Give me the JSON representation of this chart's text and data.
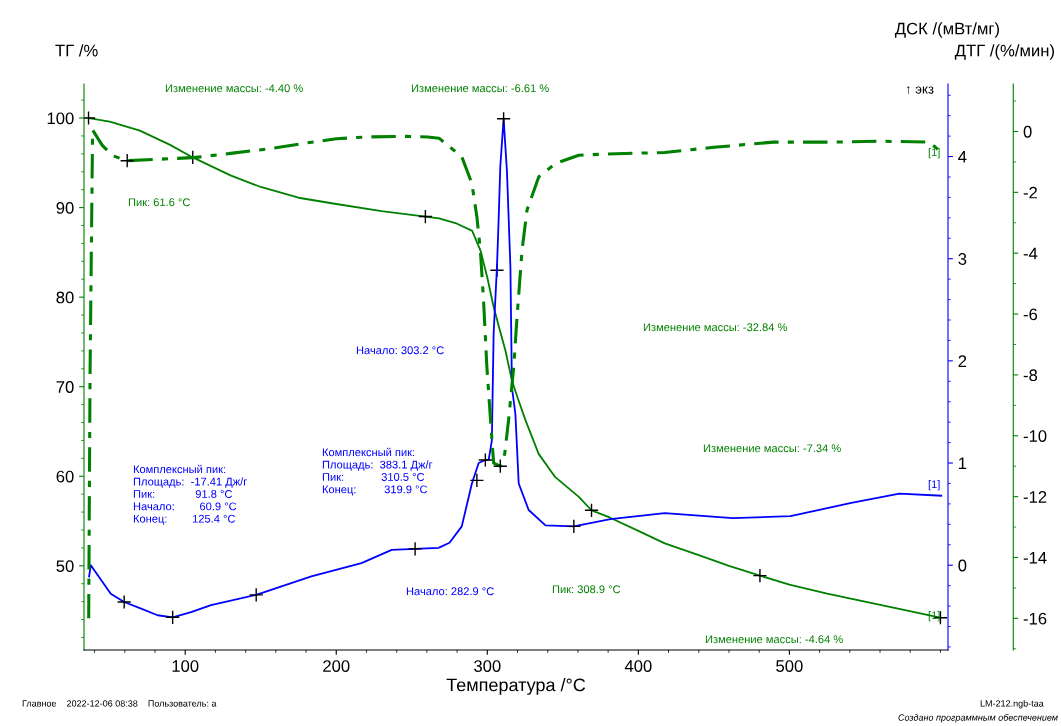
{
  "chart_data": {
    "type": "line",
    "xlabel": "Температура /°C",
    "ylabel": "ТГ /%",
    "y2label": "ДСК /(мВт/мг)",
    "y3label": "ДТГ /(%/мин)",
    "xlim": [
      33,
      605
    ],
    "xticks": [
      100,
      200,
      300,
      400,
      500
    ],
    "ylim": [
      40.6,
      103.8
    ],
    "yticks": [
      50,
      60,
      70,
      80,
      90,
      100
    ],
    "y2lim": [
      -0.83,
      4.71
    ],
    "y2ticks": [
      0,
      1,
      2,
      3,
      4
    ],
    "y3lim": [
      -17.04,
      1.56
    ],
    "y3ticks": [
      -16,
      -14,
      -12,
      -10,
      -8,
      -6,
      -4,
      -2,
      0
    ],
    "grid": false,
    "series": [
      {
        "axis": "y",
        "color": "#008000",
        "line_style": "solid",
        "x": [
          36,
          50,
          70,
          90,
          105,
          130,
          150,
          175,
          200,
          230,
          259,
          268,
          280,
          290,
          295.5,
          300,
          304.2,
          307.5,
          311.9,
          316.3,
          320,
          325.2,
          334,
          345,
          360.6,
          369,
          381,
          400,
          417.5,
          440,
          460,
          480.5,
          500,
          525,
          550,
          575,
          600
        ],
        "values": [
          100,
          99.6,
          98.6,
          97.0,
          95.6,
          93.6,
          92.3,
          91.1,
          90.4,
          89.6,
          89.0,
          88.8,
          88.2,
          87.4,
          85.2,
          82.2,
          78.9,
          76.8,
          74.1,
          70.7,
          68.8,
          66.3,
          62.5,
          59.9,
          57.7,
          56.2,
          55.4,
          53.9,
          52.5,
          51.2,
          50.0,
          48.9,
          47.9,
          46.9,
          46.0,
          45.1,
          44.2
        ]
      },
      {
        "axis": "y2",
        "color": "#0000ff",
        "line_style": "solid",
        "x": [
          36.4,
          37.5,
          50.7,
          59.6,
          70,
          81.7,
          91.7,
          103.9,
          117.1,
          147,
          183.5,
          216.7,
          236.7,
          252.2,
          267.7,
          275,
          283.1,
          289.8,
          294.3,
          298.7,
          300.9,
          303,
          304.2,
          306.4,
          307.5,
          308.6,
          310.8,
          313,
          314.1,
          315.3,
          316.3,
          318.6,
          320.8,
          327.4,
          338.5,
          357.3,
          381.5,
          417.5,
          462.5,
          500.7,
          541,
          572.8,
          600.5
        ],
        "values": [
          -0.11,
          0.0,
          -0.28,
          -0.36,
          -0.42,
          -0.49,
          -0.51,
          -0.46,
          -0.39,
          -0.29,
          -0.11,
          0.02,
          0.15,
          0.16,
          0.17,
          0.22,
          0.38,
          0.8,
          1.0,
          1.03,
          1.03,
          1.22,
          2.27,
          2.92,
          3.38,
          3.9,
          4.37,
          3.86,
          3.41,
          2.92,
          1.74,
          1.48,
          0.8,
          0.54,
          0.39,
          0.38,
          0.45,
          0.51,
          0.46,
          0.48,
          0.61,
          0.7,
          0.68
        ]
      },
      {
        "axis": "y3",
        "color": "#008000",
        "line_style": "dashdot",
        "x": [
          36.1,
          37,
          38.7,
          45,
          52,
          61.6,
          80,
          105,
          130,
          155,
          180,
          200,
          220,
          245,
          260.6,
          268,
          283.1,
          289.8,
          293.1,
          295.4,
          297.5,
          299.7,
          302,
          304.2,
          308.6,
          311.5,
          314.1,
          317.5,
          319.7,
          323,
          326.3,
          334.1,
          345.2,
          360.6,
          380,
          417.4,
          450,
          489.3,
          529.8,
          560,
          592.8,
          600.6
        ],
        "values": [
          -16.0,
          -8.0,
          0.05,
          -0.45,
          -0.8,
          -0.96,
          -0.92,
          -0.86,
          -0.72,
          -0.57,
          -0.38,
          -0.24,
          -0.18,
          -0.16,
          -0.18,
          -0.22,
          -0.83,
          -1.71,
          -2.8,
          -3.9,
          -5.54,
          -7.73,
          -9.38,
          -10.9,
          -11.0,
          -10.6,
          -9.48,
          -7.73,
          -6.09,
          -3.9,
          -2.58,
          -1.49,
          -1.05,
          -0.78,
          -0.74,
          -0.69,
          -0.52,
          -0.35,
          -0.35,
          -0.32,
          -0.35,
          -0.69
        ]
      },
      {
        "type": "scatter",
        "axis": "y",
        "color": "#000000",
        "marker": "cross",
        "x": [
          36,
          105,
          259,
          306.4,
          369,
          480.5,
          600
        ],
        "values": [
          100,
          95.6,
          89.0,
          83.0,
          56.2,
          48.9,
          44.2
        ]
      },
      {
        "type": "scatter",
        "axis": "y2",
        "color": "#000000",
        "marker": "cross",
        "x": [
          59.6,
          91.7,
          147,
          252.2,
          293.1,
          298.7,
          310.8,
          357.3
        ],
        "values": [
          -0.36,
          -0.51,
          -0.29,
          0.16,
          0.83,
          1.03,
          4.37,
          0.38
        ]
      },
      {
        "type": "scatter",
        "axis": "y3",
        "color": "#000000",
        "marker": "cross",
        "x": [
          61.6,
          308.6
        ],
        "values": [
          -0.96,
          -11.0
        ]
      }
    ],
    "annotations": [
      "Изменение массы: -4.40 %",
      "Изменение массы: -6.61 %",
      "Изменение массы: -32.84 %",
      "Изменение массы: -7.34 %",
      "Изменение массы: -4.64 %",
      "Пик: 61.6 °C",
      "Начало: 303.2 °C",
      "Комплексный пик:\nПлощадь:  -17.41 Дж/г\nПик:             91.8 °C\nНачало:        60.9 °C\nКонец:        125.4 °C",
      "Комплексный пик:\nПлощадь:  383.1 Дж/г\nПик:            310.5 °C\nКонец:         319.9 °C",
      "Начало: 282.9 °C",
      "Пик: 308.9 °C",
      "↑ экз",
      "[1]",
      "[1]",
      "[1]",
      "Главное    2022-12-06 08:38    Пользователь: a",
      "LM-212.ngb-taa",
      "Создано программным обеспечением"
    ]
  }
}
